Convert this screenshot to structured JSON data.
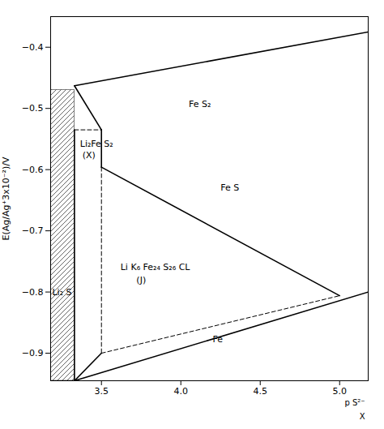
{
  "chart_data": {
    "type": "line",
    "ylabel": "E(Ag/Ag⁺3x10⁻²)/V",
    "xlim": [
      3.18,
      5.18
    ],
    "ylim": [
      -0.945,
      -0.35
    ],
    "xticks": [
      3.5,
      4.0,
      4.5,
      5.0
    ],
    "yticks": [
      -0.4,
      -0.5,
      -0.6,
      -0.7,
      -0.8,
      -0.9
    ],
    "grid": false,
    "hatch": {
      "x": [
        3.18,
        3.33
      ],
      "y": [
        -0.945,
        -0.47
      ]
    },
    "lines": [
      {
        "x": [
          3.33,
          5.18
        ],
        "y": [
          -0.463,
          -0.375
        ],
        "line_style": "solid"
      },
      {
        "x": [
          3.33,
          3.5
        ],
        "y": [
          -0.463,
          -0.535
        ],
        "line_style": "solid"
      },
      {
        "x": [
          3.33,
          3.5
        ],
        "y": [
          -0.535,
          -0.535
        ],
        "line_style": "dashed"
      },
      {
        "x": [
          3.5,
          3.5
        ],
        "y": [
          -0.535,
          -0.596
        ],
        "line_style": "solid"
      },
      {
        "x": [
          3.5,
          5.0
        ],
        "y": [
          -0.596,
          -0.806
        ],
        "line_style": "solid"
      },
      {
        "x": [
          3.5,
          3.5
        ],
        "y": [
          -0.596,
          -0.9
        ],
        "line_style": "dashed"
      },
      {
        "x": [
          3.5,
          5.0
        ],
        "y": [
          -0.9,
          -0.806
        ],
        "line_style": "dashed"
      },
      {
        "x": [
          3.33,
          3.5
        ],
        "y": [
          -0.945,
          -0.9
        ],
        "line_style": "solid"
      },
      {
        "x": [
          3.33,
          5.18
        ],
        "y": [
          -0.945,
          -0.8
        ],
        "line_style": "solid"
      },
      {
        "x": [
          3.33,
          3.33
        ],
        "y": [
          -0.535,
          -0.945
        ],
        "line_style": "solid"
      }
    ],
    "annotations": [
      {
        "text": "Fe S₂",
        "x": 4.05,
        "y": -0.493
      },
      {
        "text": "Fe S",
        "x": 4.25,
        "y": -0.63
      },
      {
        "text": "Li₂Fe S₂",
        "x": 3.365,
        "y": -0.558
      },
      {
        "text": "(X)",
        "x": 3.38,
        "y": -0.577
      },
      {
        "text": "Li K₆ Fe₂₄ S₂₆ CL",
        "x": 3.62,
        "y": -0.76
      },
      {
        "text": "(J)",
        "x": 3.72,
        "y": -0.78
      },
      {
        "text": "Li₂ S",
        "x": 3.19,
        "y": -0.8
      },
      {
        "text": "Fe",
        "x": 4.2,
        "y": -0.877
      },
      {
        "text": "p S²⁻",
        "x": 5.16,
        "y": -0.955
      },
      {
        "text": "X",
        "x": 5.16,
        "y": -0.97
      }
    ]
  }
}
